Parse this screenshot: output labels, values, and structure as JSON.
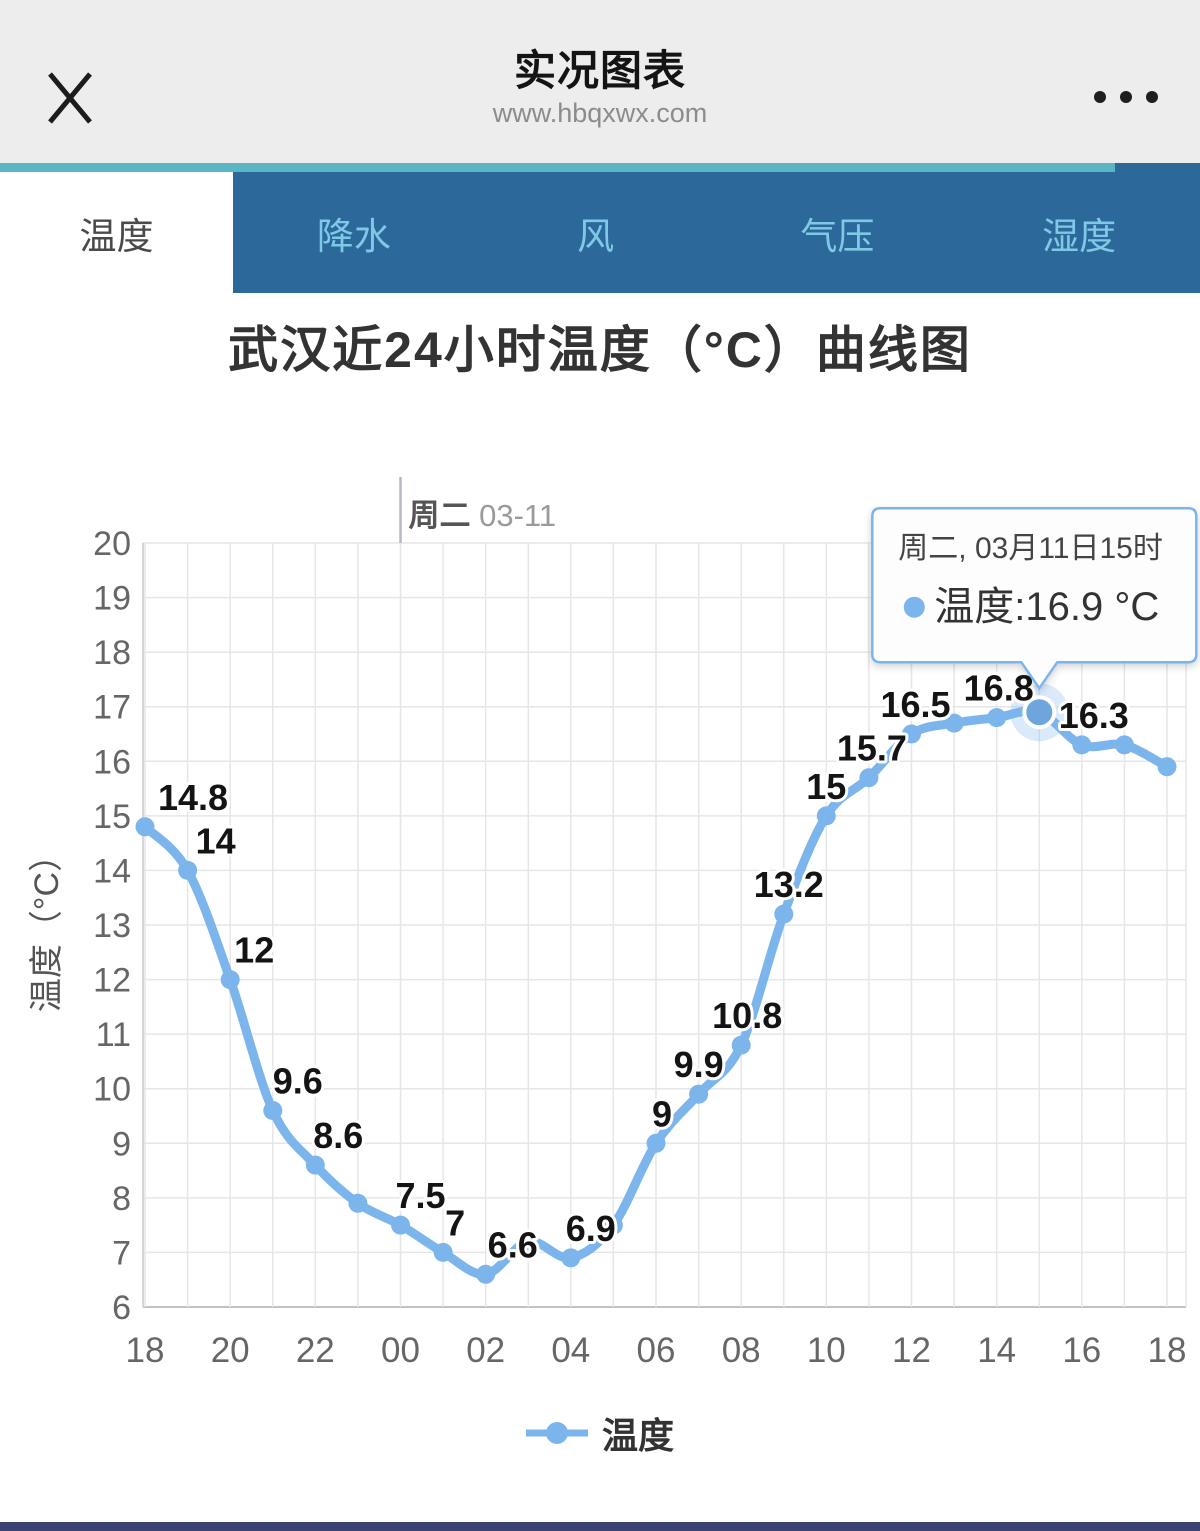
{
  "header": {
    "title": "实况图表",
    "url": "www.hbqxwx.com"
  },
  "tabs": [
    {
      "label": "温度",
      "active": true
    },
    {
      "label": "降水",
      "active": false
    },
    {
      "label": "风",
      "active": false
    },
    {
      "label": "气压",
      "active": false
    },
    {
      "label": "湿度",
      "active": false
    }
  ],
  "colors": {
    "accent_teal": "#5ab6c3",
    "tab_bar": "#2d689a",
    "tab_text": "#7ec9e6",
    "series_line": "#7cb5ec",
    "highlight_marker": "#6ea5dd",
    "bottom_bar": "#3a4371"
  },
  "chart_data": {
    "type": "line",
    "title": "武汉近24小时温度（°C）曲线图",
    "y_axis_title": "温度（°C）",
    "ylim": [
      6,
      20
    ],
    "y_ticks": [
      20,
      19,
      18,
      17,
      16,
      15,
      14,
      13,
      12,
      11,
      10,
      9,
      8,
      7,
      6
    ],
    "x_ticks": [
      {
        "i": 0,
        "label": "18"
      },
      {
        "i": 2,
        "label": "20"
      },
      {
        "i": 4,
        "label": "22"
      },
      {
        "i": 6,
        "label": "00"
      },
      {
        "i": 8,
        "label": "02"
      },
      {
        "i": 10,
        "label": "04"
      },
      {
        "i": 12,
        "label": "06"
      },
      {
        "i": 14,
        "label": "08"
      },
      {
        "i": 16,
        "label": "10"
      },
      {
        "i": 18,
        "label": "12"
      },
      {
        "i": 20,
        "label": "14"
      },
      {
        "i": 22,
        "label": "16"
      },
      {
        "i": 24,
        "label": "18"
      }
    ],
    "day_marker": {
      "index": 6,
      "bold": "周二",
      "text": "03-11"
    },
    "grid": true,
    "legend_position": "bottom",
    "series": [
      {
        "name": "温度",
        "color": "#7cb5ec",
        "hours": [
          "18",
          "19",
          "20",
          "21",
          "22",
          "23",
          "00",
          "01",
          "02",
          "03",
          "04",
          "05",
          "06",
          "07",
          "08",
          "09",
          "10",
          "11",
          "12",
          "13",
          "14",
          "15",
          "16",
          "17",
          "18"
        ],
        "values": [
          14.8,
          14,
          12,
          9.6,
          8.6,
          7.9,
          7.5,
          7,
          6.6,
          7.2,
          6.9,
          7.5,
          9,
          9.9,
          10.8,
          13.2,
          15,
          15.7,
          16.5,
          16.7,
          16.8,
          16.9,
          16.3,
          16.3,
          15.9
        ],
        "point_labels": [
          {
            "i": 0,
            "text": "14.8",
            "dx": 48
          },
          {
            "i": 1,
            "text": "14",
            "dx": 28
          },
          {
            "i": 2,
            "text": "12",
            "dx": 24
          },
          {
            "i": 3,
            "text": "9.6",
            "dx": 25
          },
          {
            "i": 4,
            "text": "8.6",
            "dx": 23
          },
          {
            "i": 6,
            "text": "7.5",
            "dx": 20
          },
          {
            "i": 7,
            "text": "7",
            "dx": 12
          },
          {
            "i": 8,
            "text": "6.6",
            "dx": 27
          },
          {
            "i": 10,
            "text": "6.9",
            "dx": 20
          },
          {
            "i": 12,
            "text": "9",
            "dx": 6
          },
          {
            "i": 13,
            "text": "9.9",
            "dx": 0
          },
          {
            "i": 14,
            "text": "10.8",
            "dx": 6
          },
          {
            "i": 15,
            "text": "13.2",
            "dx": 5
          },
          {
            "i": 16,
            "text": "15",
            "dx": 0
          },
          {
            "i": 17,
            "text": "15.7",
            "dx": 3
          },
          {
            "i": 18,
            "text": "16.5",
            "dx": 4
          },
          {
            "i": 20,
            "text": "16.8",
            "dx": 2
          },
          {
            "i": 22,
            "text": "16.3",
            "dx": 12
          }
        ]
      }
    ],
    "tooltip": {
      "index": 21,
      "date_line": "周二, 03月11日15时",
      "series_label": "温度",
      "value_text": "16.9 °C"
    }
  }
}
